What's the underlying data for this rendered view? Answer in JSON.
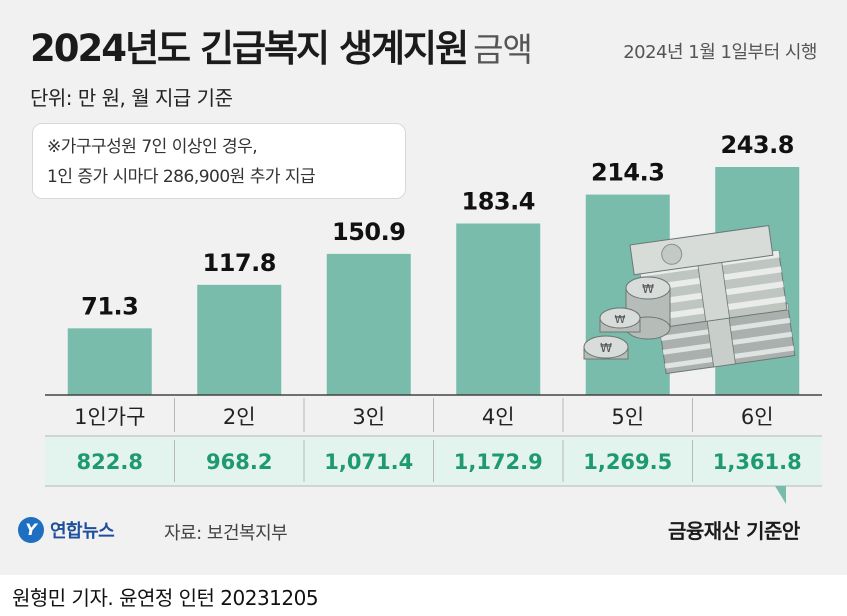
{
  "header": {
    "title": "2024년도 긴급복지 생계지원",
    "title_suffix": "금액",
    "effective_date": "2024년 1월 1일부터 시행",
    "unit": "단위: 만 원, 월 지급 기준"
  },
  "note": {
    "line1": "※가구구성원 7인 이상인 경우,",
    "line2": "1인 증가 시마다 286,900원 추가 지급"
  },
  "footer": {
    "finance_label": "금융재산 기준안",
    "logo_text": "연합뉴스",
    "source": "자료: 보건복지부",
    "byline": "원형민 기자. 윤연정 인턴  20231205"
  },
  "colors": {
    "bar": "#79bcac",
    "finance_text": "#1f9a70",
    "finance_row": "#e3f3ee",
    "background": "#f1f1f1"
  },
  "icons": [
    "money-stack-icon",
    "coin-icon",
    "yonhap-logo-icon"
  ],
  "chart_data": {
    "type": "bar",
    "title": "2024년도 긴급복지 생계지원 금액",
    "ylabel": "만 원",
    "categories": [
      "1인가구",
      "2인",
      "3인",
      "4인",
      "5인",
      "6인"
    ],
    "values": [
      71.3,
      117.8,
      150.9,
      183.4,
      214.3,
      243.8
    ],
    "value_labels": [
      "71.3",
      "117.8",
      "150.9",
      "183.4",
      "214.3",
      "243.8"
    ],
    "ylim": [
      0,
      243.8
    ],
    "grid": false,
    "finance_criteria_labels": [
      "822.8",
      "968.2",
      "1,071.4",
      "1,172.9",
      "1,269.5",
      "1,361.8"
    ]
  }
}
